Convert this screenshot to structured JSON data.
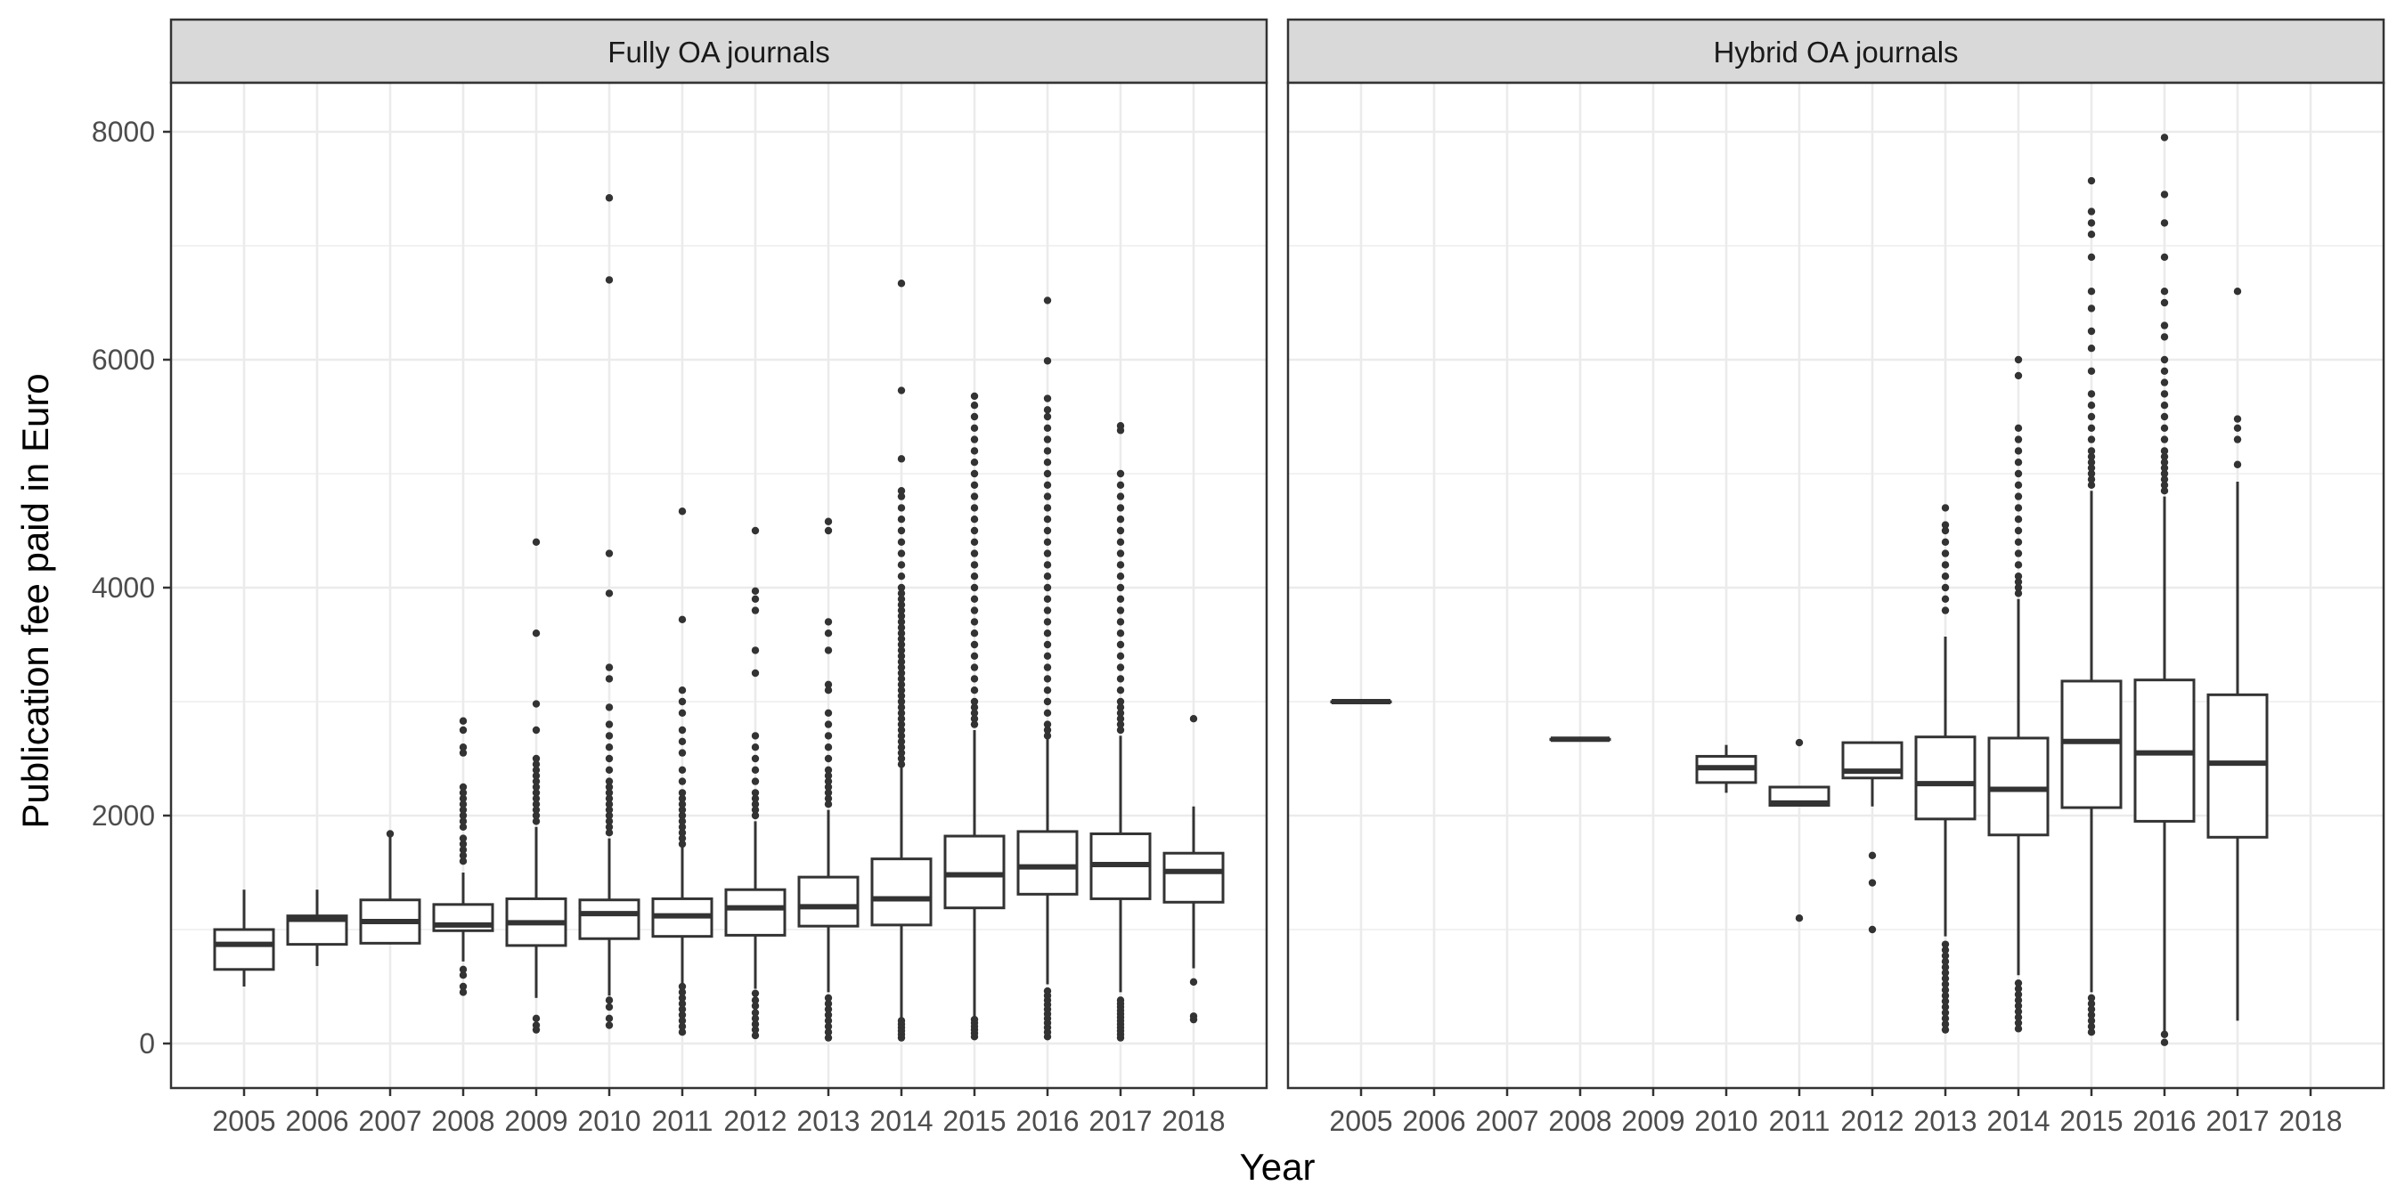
{
  "chart_data": {
    "type": "boxplot",
    "xlabel": "Year",
    "ylabel": "Publication fee paid in Euro",
    "ylim": [
      -400,
      8500
    ],
    "yticks": [
      0,
      2000,
      4000,
      6000,
      8000
    ],
    "categories": [
      "2005",
      "2006",
      "2007",
      "2008",
      "2009",
      "2010",
      "2011",
      "2012",
      "2013",
      "2014",
      "2015",
      "2016",
      "2017",
      "2018"
    ],
    "grid": true,
    "colors": {
      "box_line": "#333333",
      "strip_fill": "#d9d9d9",
      "grid": "#ebebeb",
      "border": "#333333"
    },
    "panels": [
      {
        "title": "Fully OA journals",
        "boxes": [
          {
            "year": "2005",
            "lower": 500,
            "q1": 650,
            "median": 870,
            "q3": 1000,
            "upper": 1350,
            "outliers": []
          },
          {
            "year": "2006",
            "lower": 680,
            "q1": 870,
            "median": 1090,
            "q3": 1120,
            "upper": 1350,
            "outliers": []
          },
          {
            "year": "2007",
            "lower": 870,
            "q1": 880,
            "median": 1070,
            "q3": 1260,
            "upper": 1830,
            "outliers": [
              1840
            ]
          },
          {
            "year": "2008",
            "lower": 720,
            "q1": 990,
            "median": 1040,
            "q3": 1220,
            "upper": 1500,
            "outliers": [
              450,
              500,
              600,
              650,
              1600,
              1650,
              1700,
              1750,
              1800,
              1900,
              1950,
              2000,
              2050,
              2100,
              2150,
              2200,
              2250,
              2550,
              2600,
              2750,
              2830
            ]
          },
          {
            "year": "2009",
            "lower": 400,
            "q1": 860,
            "median": 1060,
            "q3": 1270,
            "upper": 1900,
            "outliers": [
              120,
              160,
              220,
              1950,
              2000,
              2050,
              2100,
              2150,
              2200,
              2250,
              2300,
              2350,
              2400,
              2450,
              2500,
              2750,
              2980,
              3600,
              4400
            ]
          },
          {
            "year": "2010",
            "lower": 420,
            "q1": 920,
            "median": 1140,
            "q3": 1260,
            "upper": 1800,
            "outliers": [
              160,
              220,
              320,
              380,
              1850,
              1900,
              1950,
              2000,
              2050,
              2100,
              2150,
              2200,
              2250,
              2300,
              2400,
              2500,
              2600,
              2700,
              2800,
              2950,
              3200,
              3300,
              3950,
              4300,
              6700,
              7420
            ]
          },
          {
            "year": "2011",
            "lower": 520,
            "q1": 940,
            "median": 1120,
            "q3": 1270,
            "upper": 1720,
            "outliers": [
              100,
              150,
              200,
              250,
              300,
              350,
              400,
              450,
              500,
              1750,
              1800,
              1850,
              1900,
              1950,
              2000,
              2050,
              2100,
              2150,
              2200,
              2300,
              2400,
              2550,
              2650,
              2750,
              2900,
              3000,
              3100,
              3720,
              4670
            ]
          },
          {
            "year": "2012",
            "lower": 480,
            "q1": 950,
            "median": 1190,
            "q3": 1350,
            "upper": 1950,
            "outliers": [
              70,
              120,
              170,
              220,
              270,
              330,
              380,
              440,
              2000,
              2050,
              2100,
              2150,
              2200,
              2300,
              2400,
              2500,
              2600,
              2700,
              3250,
              3450,
              3800,
              3900,
              3970,
              4500
            ]
          },
          {
            "year": "2013",
            "lower": 450,
            "q1": 1030,
            "median": 1200,
            "q3": 1460,
            "upper": 2050,
            "outliers": [
              50,
              100,
              150,
              200,
              250,
              300,
              350,
              400,
              2100,
              2150,
              2200,
              2250,
              2300,
              2350,
              2400,
              2500,
              2600,
              2700,
              2800,
              2900,
              3100,
              3150,
              3450,
              3600,
              3700,
              4500,
              4580
            ]
          },
          {
            "year": "2014",
            "lower": 220,
            "q1": 1040,
            "median": 1270,
            "q3": 1620,
            "upper": 2420,
            "outliers": [
              50,
              80,
              110,
              140,
              170,
              200,
              2450,
              2500,
              2550,
              2600,
              2650,
              2700,
              2750,
              2800,
              2850,
              2900,
              2950,
              3000,
              3050,
              3100,
              3150,
              3200,
              3250,
              3300,
              3350,
              3400,
              3450,
              3500,
              3550,
              3600,
              3650,
              3700,
              3750,
              3800,
              3850,
              3900,
              3950,
              4000,
              4100,
              4200,
              4300,
              4400,
              4500,
              4600,
              4700,
              4800,
              4850,
              5130,
              5730,
              6670
            ]
          },
          {
            "year": "2015",
            "lower": 240,
            "q1": 1190,
            "median": 1480,
            "q3": 1820,
            "upper": 2750,
            "outliers": [
              60,
              90,
              120,
              150,
              180,
              210,
              2800,
              2850,
              2900,
              2950,
              3000,
              3100,
              3200,
              3300,
              3400,
              3500,
              3600,
              3700,
              3800,
              3900,
              4000,
              4100,
              4200,
              4300,
              4400,
              4500,
              4600,
              4700,
              4800,
              4900,
              5000,
              5100,
              5200,
              5300,
              5400,
              5500,
              5600,
              5680
            ]
          },
          {
            "year": "2016",
            "lower": 520,
            "q1": 1310,
            "median": 1550,
            "q3": 1860,
            "upper": 2680,
            "outliers": [
              60,
              100,
              140,
              180,
              220,
              260,
              300,
              340,
              380,
              420,
              460,
              2700,
              2750,
              2800,
              2900,
              3000,
              3100,
              3200,
              3300,
              3400,
              3500,
              3600,
              3700,
              3800,
              3900,
              4000,
              4100,
              4200,
              4300,
              4400,
              4500,
              4600,
              4700,
              4800,
              4900,
              5000,
              5100,
              5200,
              5300,
              5400,
              5500,
              5560,
              5660,
              5990,
              6520
            ]
          },
          {
            "year": "2017",
            "lower": 450,
            "q1": 1270,
            "median": 1570,
            "q3": 1840,
            "upper": 2700,
            "outliers": [
              50,
              80,
              110,
              140,
              170,
              200,
              230,
              260,
              290,
              320,
              350,
              380,
              2750,
              2800,
              2850,
              2900,
              2950,
              3000,
              3100,
              3200,
              3300,
              3400,
              3500,
              3600,
              3700,
              3800,
              3900,
              4000,
              4100,
              4200,
              4300,
              4400,
              4500,
              4600,
              4700,
              4800,
              4900,
              5000,
              5380,
              5420
            ]
          },
          {
            "year": "2018",
            "lower": 660,
            "q1": 1240,
            "median": 1510,
            "q3": 1670,
            "upper": 2080,
            "outliers": [
              210,
              240,
              540,
              2850
            ]
          }
        ]
      },
      {
        "title": "Hybrid OA journals",
        "boxes": [
          {
            "year": "2005",
            "lower": 3000,
            "q1": 3000,
            "median": 3000,
            "q3": 3000,
            "upper": 3000,
            "outliers": []
          },
          {
            "year": "2008",
            "lower": 2670,
            "q1": 2670,
            "median": 2670,
            "q3": 2670,
            "upper": 2670,
            "outliers": []
          },
          {
            "year": "2010",
            "lower": 2200,
            "q1": 2290,
            "median": 2420,
            "q3": 2520,
            "upper": 2620,
            "outliers": []
          },
          {
            "year": "2011",
            "lower": 2090,
            "q1": 2090,
            "median": 2110,
            "q3": 2250,
            "upper": 2250,
            "outliers": [
              1100,
              2640
            ]
          },
          {
            "year": "2012",
            "lower": 2080,
            "q1": 2330,
            "median": 2390,
            "q3": 2640,
            "upper": 2640,
            "outliers": [
              1000,
              1410,
              1650
            ]
          },
          {
            "year": "2013",
            "lower": 940,
            "q1": 1970,
            "median": 2280,
            "q3": 2690,
            "upper": 3570,
            "outliers": [
              120,
              170,
              220,
              270,
              320,
              370,
              420,
              470,
              520,
              570,
              620,
              670,
              720,
              770,
              820,
              870,
              3800,
              3900,
              4000,
              4100,
              4200,
              4300,
              4400,
              4500,
              4550,
              4700
            ]
          },
          {
            "year": "2014",
            "lower": 600,
            "q1": 1830,
            "median": 2230,
            "q3": 2680,
            "upper": 3900,
            "outliers": [
              130,
              180,
              230,
              280,
              330,
              380,
              430,
              480,
              530,
              3950,
              4000,
              4050,
              4100,
              4200,
              4300,
              4400,
              4500,
              4600,
              4700,
              4800,
              4900,
              5000,
              5100,
              5200,
              5300,
              5400,
              5860,
              6000
            ]
          },
          {
            "year": "2015",
            "lower": 450,
            "q1": 2070,
            "median": 2650,
            "q3": 3180,
            "upper": 4850,
            "outliers": [
              100,
              150,
              200,
              250,
              300,
              350,
              400,
              4900,
              4950,
              5000,
              5050,
              5100,
              5150,
              5200,
              5300,
              5400,
              5500,
              5600,
              5700,
              5900,
              6100,
              6250,
              6450,
              6600,
              6900,
              7100,
              7200,
              7300,
              7570
            ]
          },
          {
            "year": "2016",
            "lower": 80,
            "q1": 1950,
            "median": 2550,
            "q3": 3190,
            "upper": 4800,
            "outliers": [
              10,
              80,
              4850,
              4900,
              4950,
              5000,
              5050,
              5100,
              5150,
              5200,
              5300,
              5400,
              5500,
              5600,
              5700,
              5800,
              5900,
              6000,
              6200,
              6300,
              6500,
              6600,
              6900,
              7200,
              7450,
              7950
            ]
          },
          {
            "year": "2017",
            "lower": 200,
            "q1": 1810,
            "median": 2460,
            "q3": 3060,
            "upper": 4930,
            "outliers": [
              5080,
              5300,
              5400,
              5480,
              6600
            ]
          }
        ]
      }
    ]
  }
}
